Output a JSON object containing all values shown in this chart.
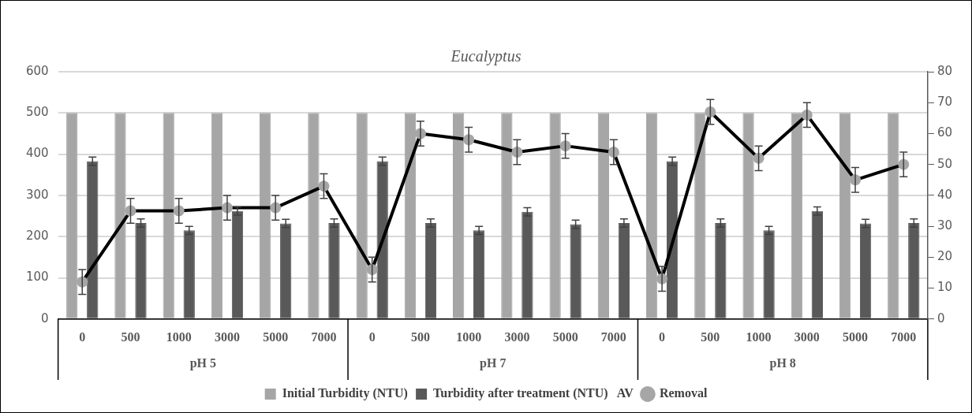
{
  "chart_data": {
    "type": "bar",
    "title": "Eucalyptus",
    "categories": [
      "0",
      "500",
      "1000",
      "3000",
      "5000",
      "7000",
      "0",
      "500",
      "1000",
      "3000",
      "5000",
      "7000",
      "0",
      "500",
      "1000",
      "3000",
      "5000",
      "7000"
    ],
    "series": [
      {
        "name": "Initial Turbidity (NTU)",
        "color": "#a6a6a6",
        "values": [
          500,
          500,
          500,
          500,
          500,
          500,
          500,
          500,
          500,
          500,
          500,
          500,
          500,
          500,
          500,
          500,
          500,
          500
        ]
      },
      {
        "name": "Turbidity after treatment (NTU)   AV",
        "color": "#595959",
        "values": [
          383,
          233,
          215,
          262,
          232,
          233,
          383,
          233,
          215,
          260,
          230,
          233,
          383,
          233,
          215,
          262,
          232,
          233
        ],
        "errors": [
          10,
          10,
          10,
          10,
          10,
          10,
          10,
          10,
          10,
          10,
          10,
          10,
          10,
          10,
          10,
          10,
          10,
          10
        ]
      },
      {
        "name": "Removal",
        "type": "line",
        "axis": "y2",
        "color": "#000000",
        "values": [
          12,
          35,
          35,
          36,
          36,
          43,
          16,
          60,
          58,
          54,
          56,
          54,
          13,
          67,
          52,
          66,
          45,
          50
        ],
        "errors": [
          4,
          4,
          4,
          4,
          4,
          4,
          4,
          4,
          4,
          4,
          4,
          4,
          4,
          4,
          4,
          4,
          4,
          4
        ]
      }
    ],
    "ylim": [
      0,
      600
    ],
    "yticks": [
      0,
      100,
      200,
      300,
      400,
      500,
      600
    ],
    "y2lim": [
      0,
      80
    ],
    "y2ticks": [
      0,
      10,
      20,
      30,
      40,
      50,
      60,
      70,
      80
    ],
    "annotations": [
      "pH 5",
      "pH 7",
      "pH 8"
    ],
    "grid": "y",
    "legend": "bottom",
    "marker": "circle",
    "line_style": "solid"
  }
}
